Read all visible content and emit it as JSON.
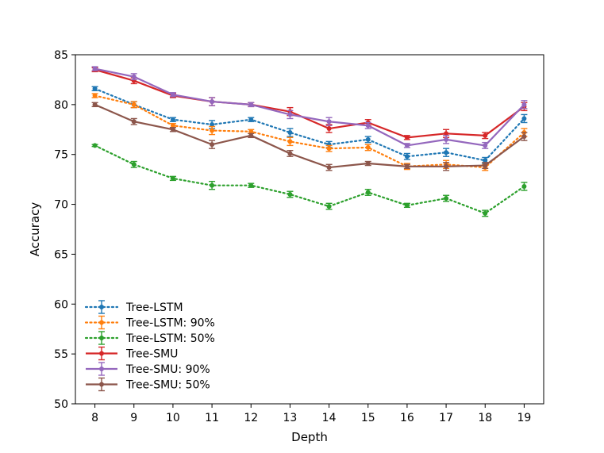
{
  "chart_data": {
    "type": "line",
    "title": "",
    "xlabel": "Depth",
    "ylabel": "Accuracy",
    "x": [
      8,
      9,
      10,
      11,
      12,
      13,
      14,
      15,
      16,
      17,
      18,
      19
    ],
    "xlim": [
      7.5,
      19.5
    ],
    "ylim": [
      50,
      85
    ],
    "yticks": [
      50,
      55,
      60,
      65,
      70,
      75,
      80,
      85
    ],
    "grid": false,
    "legend_position": "lower-left",
    "series": [
      {
        "name": "Tree-LSTM",
        "color": "#1f77b4",
        "style": "dotted",
        "values": [
          81.6,
          80.0,
          78.5,
          78.0,
          78.5,
          77.2,
          76.0,
          76.5,
          74.8,
          75.2,
          74.4,
          78.6
        ],
        "errors": [
          0.2,
          0.3,
          0.2,
          0.4,
          0.2,
          0.4,
          0.3,
          0.3,
          0.3,
          0.4,
          0.3,
          0.4
        ]
      },
      {
        "name": "Tree-LSTM: 90%",
        "color": "#ff7f0e",
        "style": "dotted",
        "values": [
          80.9,
          80.0,
          77.9,
          77.4,
          77.3,
          76.3,
          75.6,
          75.7,
          73.8,
          74.0,
          73.7,
          77.2
        ],
        "errors": [
          0.2,
          0.3,
          0.2,
          0.4,
          0.2,
          0.4,
          0.3,
          0.3,
          0.3,
          0.4,
          0.3,
          0.4
        ]
      },
      {
        "name": "Tree-LSTM: 50%",
        "color": "#2ca02c",
        "style": "dotted",
        "values": [
          75.9,
          74.0,
          72.6,
          71.9,
          71.9,
          71.0,
          69.8,
          71.2,
          69.9,
          70.6,
          69.1,
          71.8
        ],
        "errors": [
          0.1,
          0.3,
          0.2,
          0.4,
          0.2,
          0.3,
          0.3,
          0.3,
          0.2,
          0.3,
          0.3,
          0.4
        ]
      },
      {
        "name": "Tree-SMU",
        "color": "#d62728",
        "style": "solid",
        "values": [
          83.5,
          82.4,
          80.9,
          80.3,
          80.0,
          79.3,
          77.6,
          78.2,
          76.7,
          77.1,
          76.9,
          79.8
        ],
        "errors": [
          0.2,
          0.3,
          0.2,
          0.4,
          0.2,
          0.4,
          0.4,
          0.3,
          0.2,
          0.4,
          0.3,
          0.4
        ]
      },
      {
        "name": "Tree-SMU: 90%",
        "color": "#9467bd",
        "style": "solid",
        "values": [
          83.6,
          82.8,
          81.0,
          80.3,
          80.0,
          79.0,
          78.3,
          77.9,
          75.9,
          76.5,
          75.9,
          80.0
        ],
        "errors": [
          0.2,
          0.3,
          0.2,
          0.4,
          0.2,
          0.4,
          0.4,
          0.3,
          0.2,
          0.4,
          0.3,
          0.4
        ]
      },
      {
        "name": "Tree-SMU: 50%",
        "color": "#8c564b",
        "style": "solid",
        "values": [
          80.0,
          78.3,
          77.5,
          76.0,
          76.9,
          75.1,
          73.7,
          74.1,
          73.8,
          73.8,
          73.9,
          76.8
        ],
        "errors": [
          0.2,
          0.3,
          0.2,
          0.4,
          0.2,
          0.3,
          0.3,
          0.2,
          0.2,
          0.4,
          0.3,
          0.4
        ]
      }
    ]
  }
}
